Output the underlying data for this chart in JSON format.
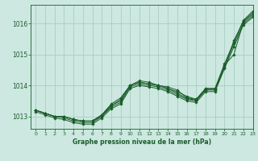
{
  "xlabel": "Graphe pression niveau de la mer (hPa)",
  "background_color": "#cce8e0",
  "grid_color": "#aaccC4",
  "line_color": "#1a5c2a",
  "xlim": [
    -0.5,
    23
  ],
  "ylim": [
    1012.6,
    1016.6
  ],
  "yticks": [
    1013,
    1014,
    1015,
    1016
  ],
  "xticks": [
    0,
    1,
    2,
    3,
    4,
    5,
    6,
    7,
    8,
    9,
    10,
    11,
    12,
    13,
    14,
    15,
    16,
    17,
    18,
    19,
    20,
    21,
    22,
    23
  ],
  "series": [
    [
      1013.2,
      1013.1,
      1013.0,
      1013.0,
      1012.9,
      1012.85,
      1012.85,
      1013.0,
      1013.35,
      1013.5,
      1014.0,
      1014.1,
      1014.05,
      1014.0,
      1013.9,
      1013.8,
      1013.65,
      1013.55,
      1013.9,
      1013.9,
      1014.65,
      1015.0,
      1016.05,
      1016.3
    ],
    [
      1013.2,
      1013.1,
      1013.0,
      1013.0,
      1012.9,
      1012.85,
      1012.85,
      1013.05,
      1013.4,
      1013.6,
      1014.0,
      1014.15,
      1014.1,
      1014.0,
      1013.95,
      1013.85,
      1013.6,
      1013.55,
      1013.9,
      1013.9,
      1014.7,
      1015.4,
      1016.1,
      1016.4
    ],
    [
      1013.2,
      1013.1,
      1013.0,
      1012.95,
      1012.85,
      1012.8,
      1012.8,
      1013.0,
      1013.3,
      1013.45,
      1013.95,
      1014.05,
      1014.0,
      1013.95,
      1013.85,
      1013.7,
      1013.55,
      1013.5,
      1013.85,
      1013.85,
      1014.6,
      1015.35,
      1016.0,
      1016.25
    ],
    [
      1013.15,
      1013.05,
      1012.95,
      1012.9,
      1012.8,
      1012.75,
      1012.75,
      1012.95,
      1013.25,
      1013.4,
      1013.9,
      1014.0,
      1013.95,
      1013.9,
      1013.8,
      1013.65,
      1013.5,
      1013.45,
      1013.8,
      1013.8,
      1014.55,
      1015.25,
      1015.95,
      1016.2
    ],
    [
      1013.2,
      1013.1,
      1013.0,
      1013.0,
      1012.9,
      1012.85,
      1012.85,
      1013.05,
      1013.35,
      1013.55,
      1014.0,
      1014.1,
      1014.05,
      1014.0,
      1013.9,
      1013.75,
      1013.58,
      1013.52,
      1013.87,
      1013.87,
      1014.6,
      1015.45,
      1016.07,
      1016.35
    ]
  ]
}
